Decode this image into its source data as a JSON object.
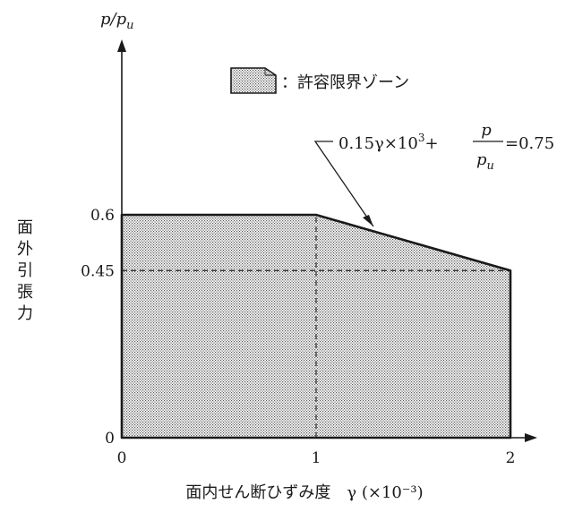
{
  "chart_data": {
    "type": "area",
    "ylabel_top": "p/p",
    "ylabel_top_sub": "u",
    "ylabel_left": [
      "面",
      "外",
      "引",
      "張",
      "力"
    ],
    "xlabel": "面内せん断ひずみ度　γ (×10⁻³)",
    "x_ticks": [
      "0",
      "1",
      "2"
    ],
    "y_ticks": [
      "0",
      "0.45",
      "0.6"
    ],
    "xlim": [
      0,
      2.2
    ],
    "ylim": [
      0,
      0.82
    ],
    "zone_boundary": [
      {
        "x": 0,
        "y": 0
      },
      {
        "x": 0,
        "y": 0.6
      },
      {
        "x": 1,
        "y": 0.6
      },
      {
        "x": 2,
        "y": 0.45
      },
      {
        "x": 2,
        "y": 0
      }
    ],
    "reference_lines": {
      "horizontal_y": 0.45,
      "vertical_x": 1
    },
    "legend": {
      "label": "：許容限界ゾーン"
    },
    "equation": {
      "left": "0.15γ×10",
      "exponent": "3",
      "plus": "+",
      "frac_num": "p",
      "frac_den": "p",
      "frac_den_sub": "u",
      "right": "=0.75"
    }
  }
}
